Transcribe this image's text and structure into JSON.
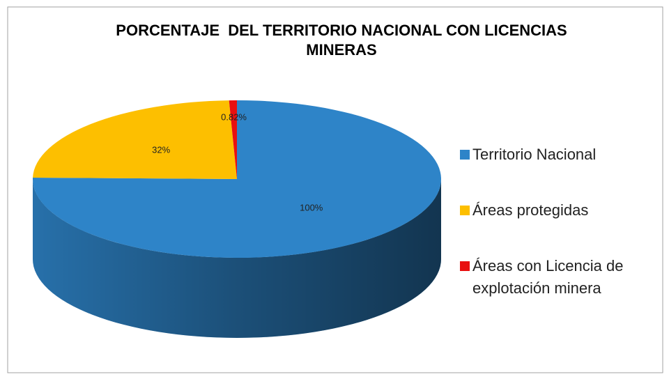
{
  "chart_data": {
    "type": "pie",
    "title": "PORCENTAJE  DEL TERRITORIO NACIONAL CON LICENCIAS MINERAS",
    "categories": [
      "Territorio Nacional",
      "Áreas protegidas",
      "Áreas con Licencia de explotación minera"
    ],
    "values": [
      100,
      32,
      0.82
    ],
    "value_labels": [
      "100%",
      "32%",
      "0.82%"
    ],
    "colors": [
      "#2e84c8",
      "#fdbf00",
      "#e81010"
    ],
    "legend": "right"
  }
}
